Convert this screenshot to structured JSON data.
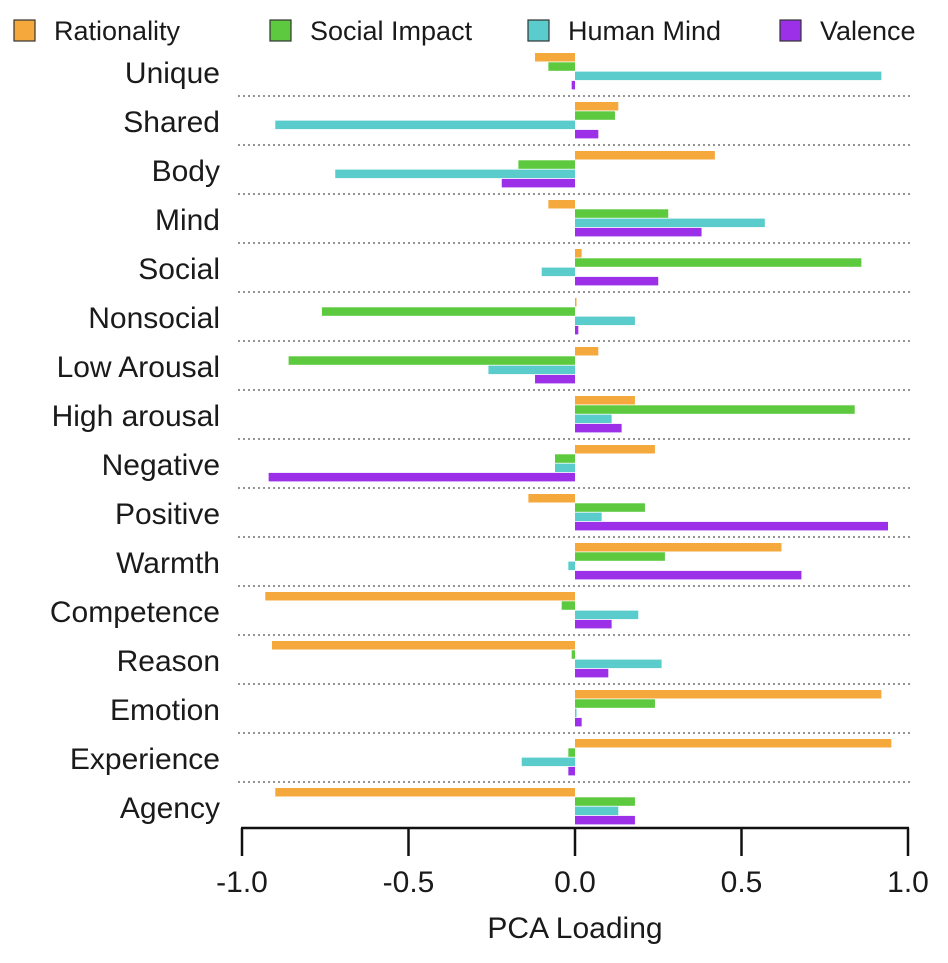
{
  "chart_data": {
    "type": "bar",
    "orientation": "horizontal",
    "xlabel": "PCA Loading",
    "xlim": [
      -1.0,
      1.0
    ],
    "xticks": [
      "-1.0",
      "-0.5",
      "0.0",
      "0.5",
      "1.0"
    ],
    "legend_position": "top",
    "grid": "dotted row separators",
    "categories": [
      "Unique",
      "Shared",
      "Body",
      "Mind",
      "Social",
      "Nonsocial",
      "Low Arousal",
      "High arousal",
      "Negative",
      "Positive",
      "Warmth",
      "Competence",
      "Reason",
      "Emotion",
      "Experience",
      "Agency"
    ],
    "series": [
      {
        "name": "Rationality",
        "color": "#F5A83C",
        "values": [
          -0.12,
          0.13,
          0.42,
          -0.08,
          0.02,
          0.0,
          0.07,
          0.18,
          0.24,
          -0.14,
          0.62,
          -0.93,
          -0.91,
          0.92,
          0.95,
          -0.9
        ]
      },
      {
        "name": "Social Impact",
        "color": "#5CC93E",
        "values": [
          -0.08,
          0.12,
          -0.17,
          0.28,
          0.86,
          -0.76,
          -0.86,
          0.84,
          -0.06,
          0.21,
          0.27,
          -0.04,
          -0.01,
          0.24,
          -0.02,
          0.18
        ]
      },
      {
        "name": "Human Mind",
        "color": "#5BCCCC",
        "values": [
          0.92,
          -0.9,
          -0.72,
          0.57,
          -0.1,
          0.18,
          -0.26,
          0.11,
          -0.06,
          0.08,
          -0.02,
          0.19,
          0.26,
          0.0,
          -0.16,
          0.13
        ]
      },
      {
        "name": "Valence",
        "color": "#9B30E8",
        "values": [
          -0.01,
          0.07,
          -0.22,
          0.38,
          0.25,
          0.01,
          -0.12,
          0.14,
          -0.92,
          0.94,
          0.68,
          0.11,
          0.1,
          0.02,
          -0.02,
          0.18
        ]
      }
    ]
  }
}
